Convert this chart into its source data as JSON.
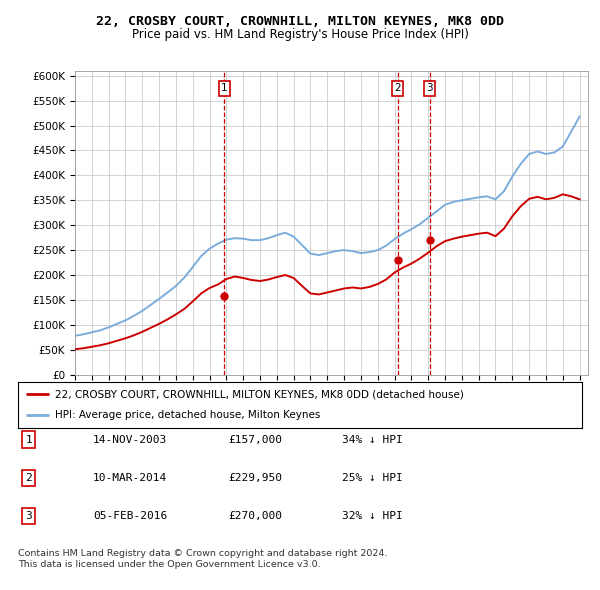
{
  "title": "22, CROSBY COURT, CROWNHILL, MILTON KEYNES, MK8 0DD",
  "subtitle": "Price paid vs. HM Land Registry's House Price Index (HPI)",
  "legend_label_red": "22, CROSBY COURT, CROWNHILL, MILTON KEYNES, MK8 0DD (detached house)",
  "legend_label_blue": "HPI: Average price, detached house, Milton Keynes",
  "footer1": "Contains HM Land Registry data © Crown copyright and database right 2024.",
  "footer2": "This data is licensed under the Open Government Licence v3.0.",
  "transactions": [
    {
      "num": "1",
      "date": "14-NOV-2003",
      "price": "£157,000",
      "pct": "34% ↓ HPI",
      "year": 2003.87,
      "price_val": 157000
    },
    {
      "num": "2",
      "date": "10-MAR-2014",
      "price": "£229,950",
      "pct": "25% ↓ HPI",
      "year": 2014.19,
      "price_val": 229950
    },
    {
      "num": "3",
      "date": "05-FEB-2016",
      "price": "£270,000",
      "pct": "32% ↓ HPI",
      "year": 2016.09,
      "price_val": 270000
    }
  ],
  "ylim_max": 600000,
  "xlim_start": 1995.0,
  "xlim_end": 2025.5,
  "hpi_color": "#7aaddc",
  "price_color": "#cc0000",
  "grid_color": "#cccccc",
  "years_hpi": [
    1995.0,
    1995.5,
    1996.0,
    1996.5,
    1997.0,
    1997.5,
    1998.0,
    1998.5,
    1999.0,
    1999.5,
    2000.0,
    2000.5,
    2001.0,
    2001.5,
    2002.0,
    2002.5,
    2003.0,
    2003.5,
    2004.0,
    2004.5,
    2005.0,
    2005.5,
    2006.0,
    2006.5,
    2007.0,
    2007.5,
    2008.0,
    2008.5,
    2009.0,
    2009.5,
    2010.0,
    2010.5,
    2011.0,
    2011.5,
    2012.0,
    2012.5,
    2013.0,
    2013.5,
    2014.0,
    2014.5,
    2015.0,
    2015.5,
    2016.0,
    2016.5,
    2017.0,
    2017.5,
    2018.0,
    2018.5,
    2019.0,
    2019.5,
    2020.0,
    2020.5,
    2021.0,
    2021.5,
    2022.0,
    2022.5,
    2023.0,
    2023.5,
    2024.0,
    2024.5,
    2025.0
  ],
  "hpi_values": [
    78000,
    81000,
    85000,
    89000,
    95000,
    102000,
    109000,
    118000,
    128000,
    140000,
    152000,
    165000,
    178000,
    195000,
    216000,
    238000,
    253000,
    263000,
    271000,
    274000,
    273000,
    270000,
    270000,
    274000,
    280000,
    285000,
    277000,
    260000,
    243000,
    240000,
    244000,
    248000,
    250000,
    248000,
    244000,
    246000,
    250000,
    259000,
    272000,
    283000,
    292000,
    302000,
    315000,
    328000,
    341000,
    347000,
    350000,
    353000,
    356000,
    358000,
    352000,
    368000,
    398000,
    423000,
    443000,
    448000,
    443000,
    446000,
    458000,
    488000,
    518000
  ],
  "red_values": [
    51000,
    53000,
    56000,
    59000,
    63000,
    68000,
    73000,
    79000,
    86000,
    94000,
    102000,
    111000,
    121000,
    132000,
    147000,
    163000,
    174000,
    181000,
    192000,
    197000,
    194000,
    190000,
    188000,
    191000,
    196000,
    200000,
    194000,
    178000,
    163000,
    161000,
    165000,
    169000,
    173000,
    175000,
    173000,
    176000,
    182000,
    191000,
    205000,
    215000,
    223000,
    233000,
    245000,
    258000,
    268000,
    273000,
    277000,
    280000,
    283000,
    285000,
    278000,
    293000,
    318000,
    338000,
    353000,
    357000,
    352000,
    355000,
    362000,
    358000,
    352000
  ]
}
